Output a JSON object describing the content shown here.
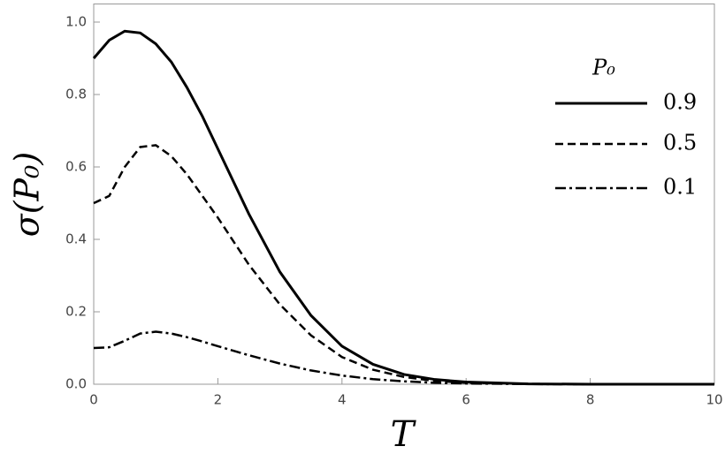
{
  "chart_data": {
    "type": "line",
    "x_label": "T",
    "y_label": "σ(P₀)",
    "legend_title": "P₀",
    "x": [
      0,
      0.25,
      0.5,
      0.75,
      1,
      1.25,
      1.5,
      1.75,
      2,
      2.5,
      3,
      3.5,
      4,
      4.5,
      5,
      5.5,
      6,
      7,
      8,
      9,
      10
    ],
    "series": [
      {
        "name": "0.9",
        "color": "#000000",
        "dash": "solid",
        "values": [
          0.9,
          0.95,
          0.975,
          0.97,
          0.94,
          0.89,
          0.82,
          0.74,
          0.65,
          0.47,
          0.31,
          0.19,
          0.105,
          0.055,
          0.027,
          0.013,
          0.006,
          0.001,
          0,
          0,
          0
        ]
      },
      {
        "name": "0.5",
        "color": "#000000",
        "dash": "dashed",
        "values": [
          0.5,
          0.52,
          0.6,
          0.655,
          0.66,
          0.63,
          0.58,
          0.52,
          0.46,
          0.33,
          0.22,
          0.135,
          0.075,
          0.04,
          0.02,
          0.009,
          0.004,
          0.001,
          0,
          0,
          0
        ]
      },
      {
        "name": "0.1",
        "color": "#000000",
        "dash": "dashdot",
        "values": [
          0.1,
          0.102,
          0.12,
          0.14,
          0.145,
          0.14,
          0.13,
          0.118,
          0.105,
          0.08,
          0.057,
          0.038,
          0.024,
          0.014,
          0.008,
          0.004,
          0.002,
          0.0005,
          0,
          0,
          0
        ]
      }
    ],
    "xlim": [
      0,
      10
    ],
    "xticks": [
      0,
      2,
      4,
      6,
      8,
      10
    ],
    "ylim": [
      0,
      1.05
    ],
    "yticks": [
      {
        "value": 0,
        "label": "0.0"
      },
      0.2,
      0.4,
      0.6,
      0.8,
      {
        "value": 1,
        "label": "1.0"
      }
    ],
    "grid": false
  }
}
